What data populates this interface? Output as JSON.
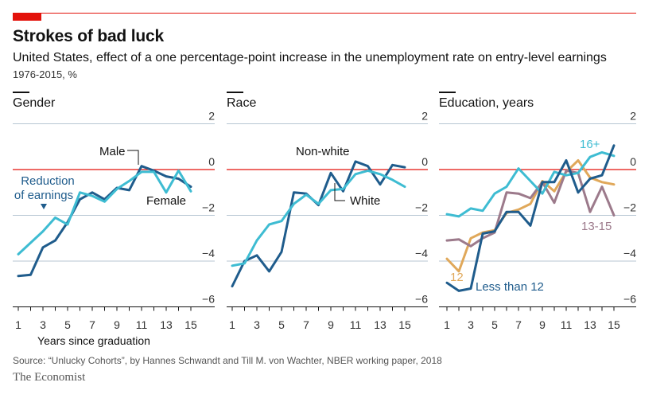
{
  "header": {
    "title": "Strokes of bad luck",
    "subtitle": "United States, effect of a one percentage-point increase in the unemployment rate on entry-level earnings",
    "period": "1976-2015, %"
  },
  "footer": {
    "source": "Source: “Unlucky Cohorts”, by Hannes Schwandt and Till M. von Wachter, NBER working paper, 2018",
    "brand": "The Economist"
  },
  "colors": {
    "accent": "#e3120b",
    "navy": "#1f5c8c",
    "teal": "#3ebcd2",
    "gold": "#e0a85a",
    "mauve": "#9c7a8b",
    "grid": "#b7c6d3"
  },
  "chart_data": [
    {
      "type": "line",
      "title": "Gender",
      "xlabel": "Years since graduation",
      "ylim": [
        -6,
        2
      ],
      "yticks": [
        2,
        0,
        -2,
        -4,
        -6
      ],
      "x": [
        1,
        2,
        3,
        4,
        5,
        6,
        7,
        8,
        9,
        10,
        11,
        12,
        13,
        14,
        15
      ],
      "xticks": [
        "1",
        "3",
        "5",
        "7",
        "9",
        "11",
        "13",
        "15"
      ],
      "series": [
        {
          "name": "Male",
          "color": "navy",
          "values": [
            -4.65,
            -4.6,
            -3.4,
            -3.1,
            -2.3,
            -1.3,
            -1.0,
            -1.3,
            -0.8,
            -0.9,
            0.15,
            -0.05,
            -0.3,
            -0.4,
            -0.75
          ]
        },
        {
          "name": "Female",
          "color": "teal",
          "values": [
            -3.7,
            -3.2,
            -2.7,
            -2.1,
            -2.4,
            -1.0,
            -1.15,
            -1.4,
            -0.85,
            -0.5,
            -0.1,
            -0.1,
            -1.0,
            -0.05,
            -0.95
          ]
        }
      ],
      "annotations": {
        "male": "Male",
        "female": "Female",
        "reduction_1": "Reduction",
        "reduction_2": "of earnings"
      }
    },
    {
      "type": "line",
      "title": "Race",
      "ylim": [
        -6,
        2
      ],
      "yticks": [
        2,
        0,
        -2,
        -4,
        -6
      ],
      "x": [
        1,
        2,
        3,
        4,
        5,
        6,
        7,
        8,
        9,
        10,
        11,
        12,
        13,
        14,
        15
      ],
      "xticks": [
        "1",
        "3",
        "5",
        "7",
        "9",
        "11",
        "13",
        "15"
      ],
      "series": [
        {
          "name": "Non-white",
          "color": "navy",
          "values": [
            -5.1,
            -4.0,
            -3.75,
            -4.45,
            -3.6,
            -1.0,
            -1.05,
            -1.55,
            -0.15,
            -0.95,
            0.35,
            0.15,
            -0.65,
            0.2,
            0.1
          ]
        },
        {
          "name": "White",
          "color": "teal",
          "values": [
            -4.2,
            -4.1,
            -3.1,
            -2.4,
            -2.25,
            -1.5,
            -1.1,
            -1.5,
            -0.9,
            -0.85,
            -0.2,
            -0.05,
            -0.2,
            -0.45,
            -0.75
          ]
        }
      ],
      "annotations": {
        "nonwhite": "Non-white",
        "white": "White"
      }
    },
    {
      "type": "line",
      "title": "Education, years",
      "ylim": [
        -6,
        2
      ],
      "yticks": [
        2,
        0,
        -2,
        -4,
        -6
      ],
      "x": [
        1,
        2,
        3,
        4,
        5,
        6,
        7,
        8,
        9,
        10,
        11,
        12,
        13,
        14,
        15
      ],
      "xticks": [
        "1",
        "3",
        "5",
        "7",
        "9",
        "11",
        "13",
        "15"
      ],
      "series": [
        {
          "name": "12",
          "color": "gold",
          "values": [
            -3.9,
            -4.45,
            -3.0,
            -2.75,
            -2.65,
            -1.9,
            -1.75,
            -1.5,
            -0.5,
            -0.95,
            -0.1,
            0.4,
            -0.35,
            -0.55,
            -0.65
          ]
        },
        {
          "name": "13-15",
          "color": "mauve",
          "values": [
            -3.1,
            -3.05,
            -3.35,
            -3.0,
            -2.75,
            -1.0,
            -1.05,
            -1.25,
            -0.55,
            -1.45,
            -0.05,
            -0.15,
            -1.85,
            -0.75,
            -2.0
          ]
        },
        {
          "name": "16+",
          "color": "teal",
          "values": [
            -1.95,
            -2.05,
            -1.7,
            -1.8,
            -1.05,
            -0.75,
            0.05,
            -0.5,
            -1.05,
            -0.1,
            -0.25,
            -0.15,
            0.55,
            0.75,
            0.6
          ]
        },
        {
          "name": "Less than 12",
          "color": "navy",
          "values": [
            -4.95,
            -5.3,
            -5.2,
            -2.8,
            -2.7,
            -1.85,
            -1.85,
            -2.45,
            -0.55,
            -0.55,
            0.4,
            -1.0,
            -0.4,
            -0.25,
            1.05
          ]
        }
      ],
      "annotations": {
        "s16": "16+",
        "s1315": "13-15",
        "s12": "12",
        "s_lt12": "Less than 12"
      }
    }
  ]
}
